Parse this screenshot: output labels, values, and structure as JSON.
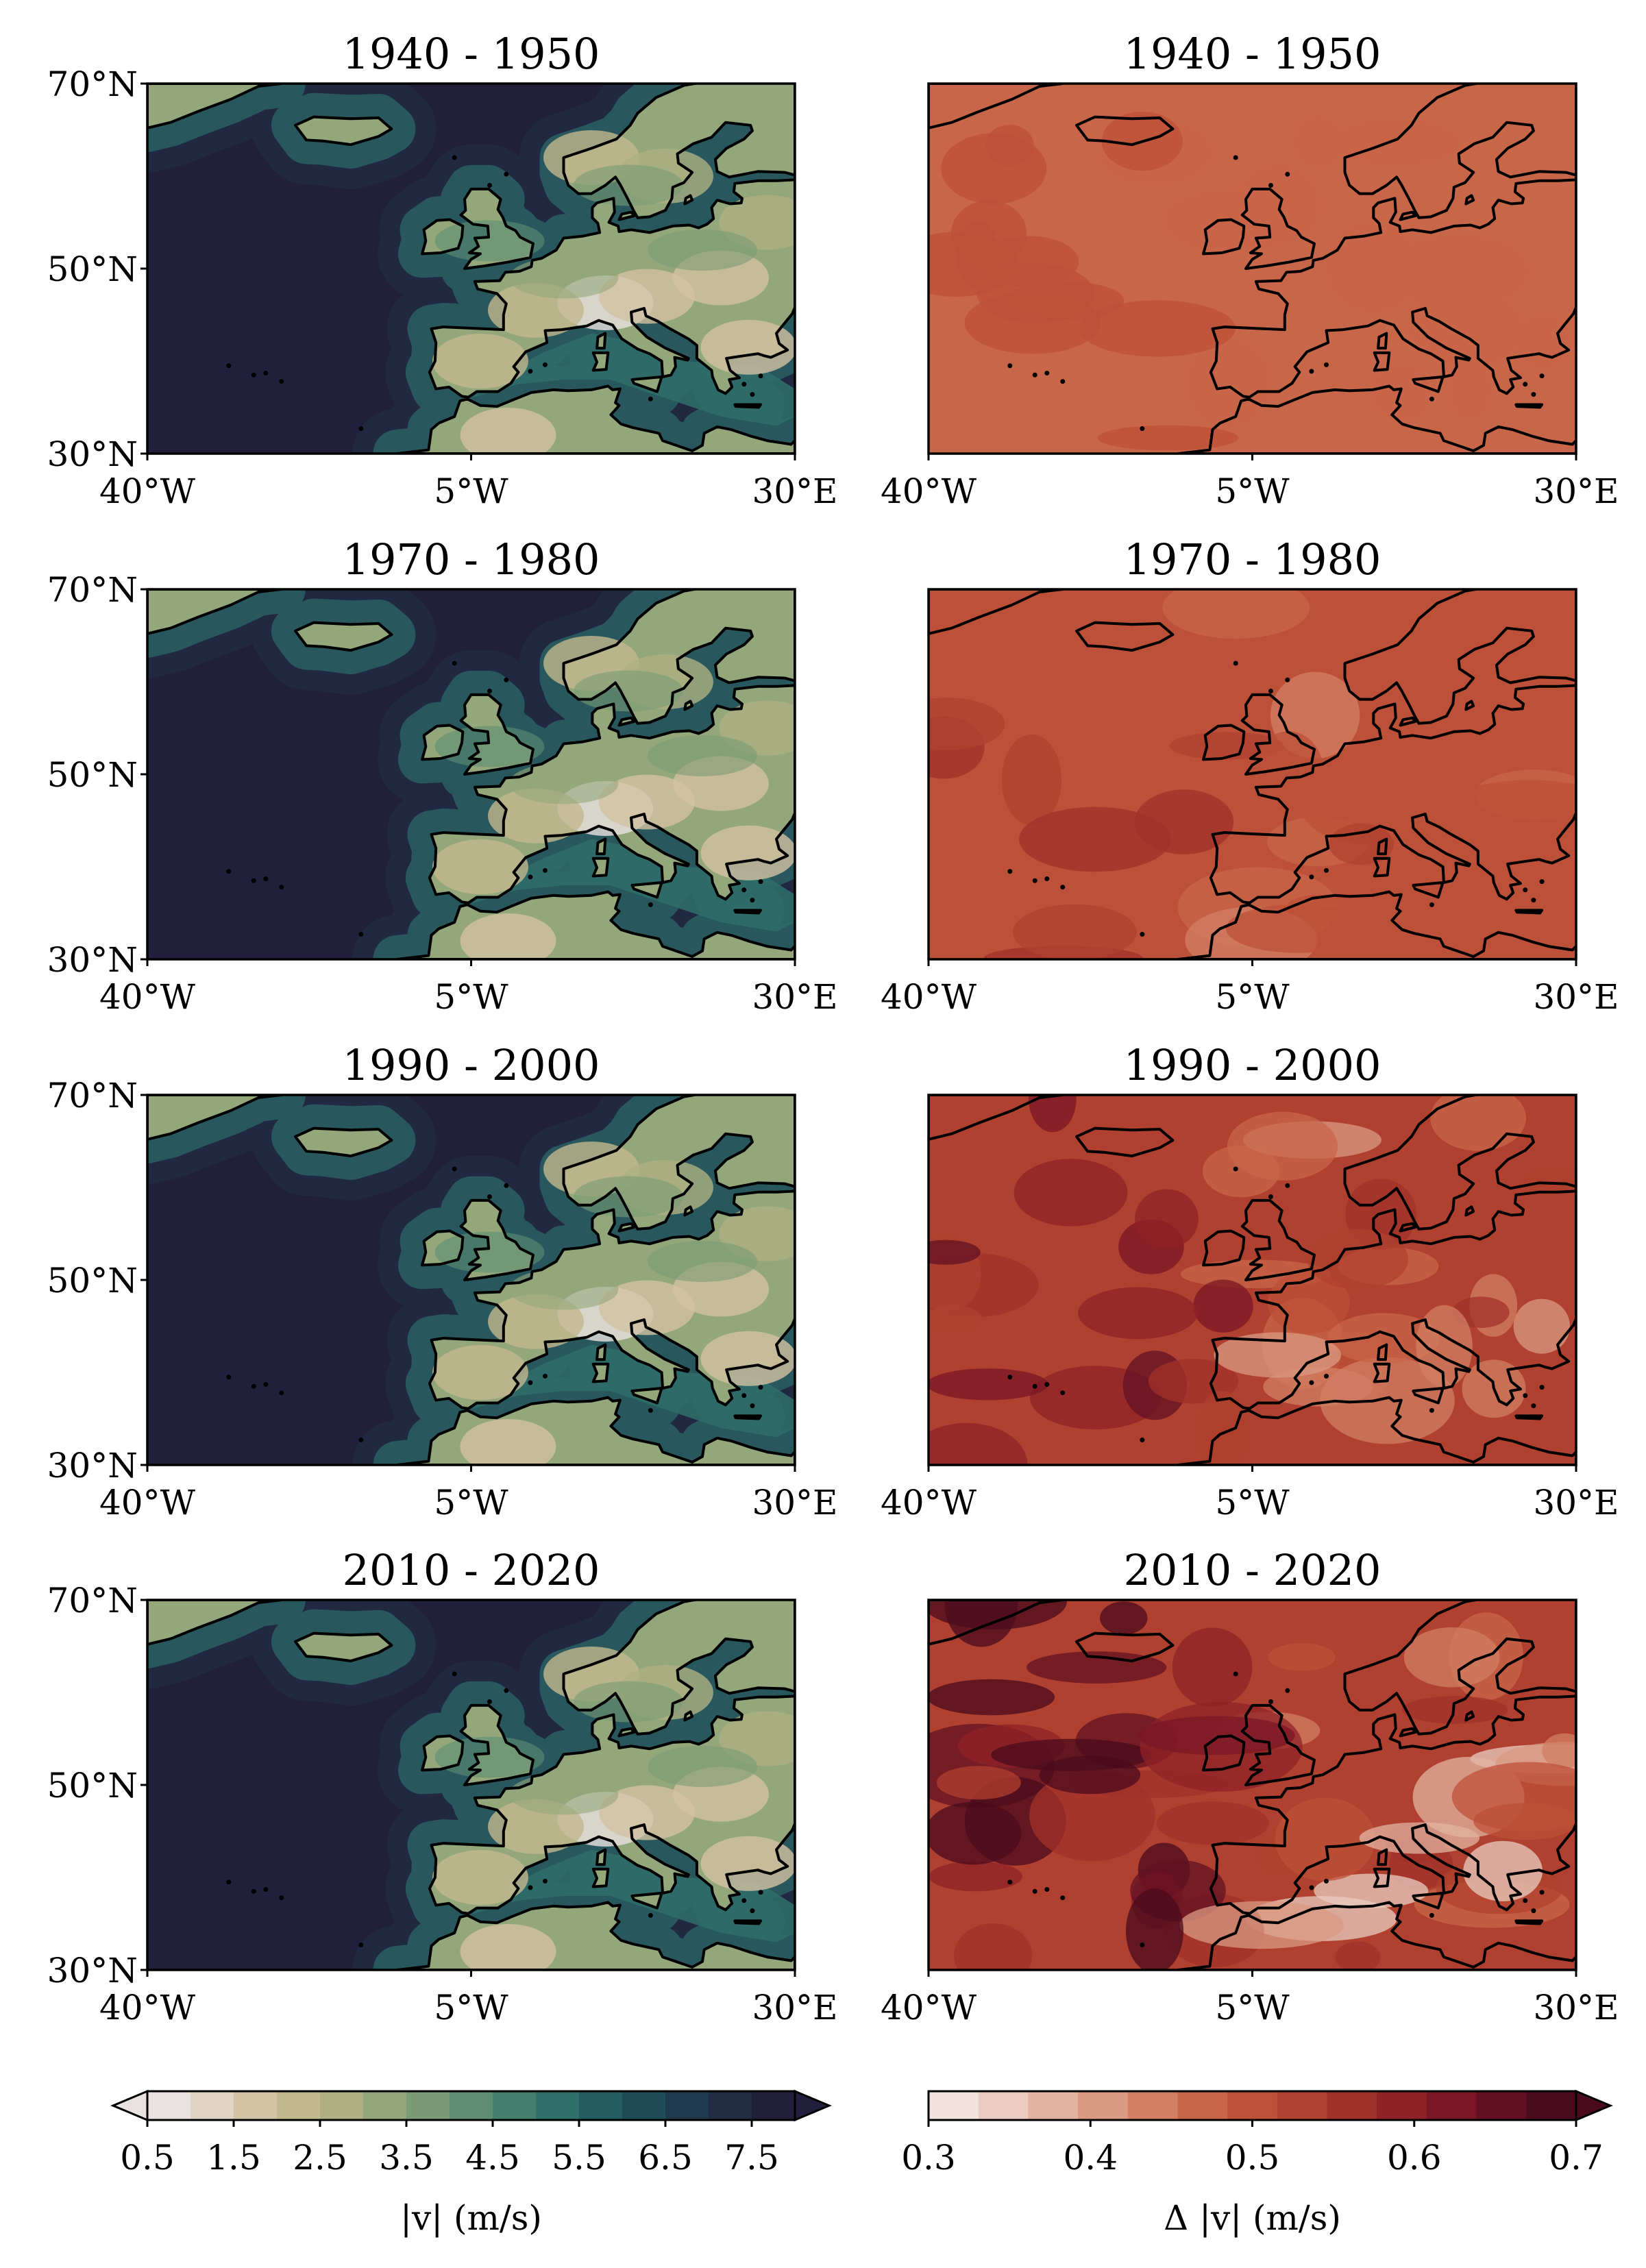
{
  "chart_data": {
    "type": "heatmap",
    "description_free": true,
    "panels": [
      {
        "column": "left",
        "row": 0,
        "title": "1940 - 1950",
        "variable": "speed",
        "mean_land": 3.0,
        "mean_sea": 7.8
      },
      {
        "column": "right",
        "row": 0,
        "title": "1940 - 1950",
        "variable": "delta",
        "mean": 0.48,
        "variation": 0.02
      },
      {
        "column": "left",
        "row": 1,
        "title": "1970 - 1980",
        "variable": "speed",
        "mean_land": 3.0,
        "mean_sea": 7.9
      },
      {
        "column": "right",
        "row": 1,
        "title": "1970 - 1980",
        "variable": "delta",
        "mean": 0.5,
        "variation": 0.04
      },
      {
        "column": "left",
        "row": 2,
        "title": "1990 - 2000",
        "variable": "speed",
        "mean_land": 3.0,
        "mean_sea": 7.9
      },
      {
        "column": "right",
        "row": 2,
        "title": "1990 - 2000",
        "variable": "delta",
        "mean": 0.52,
        "variation": 0.08
      },
      {
        "column": "left",
        "row": 3,
        "title": "2010 - 2020",
        "variable": "speed",
        "mean_land": 3.0,
        "mean_sea": 7.9
      },
      {
        "column": "right",
        "row": 3,
        "title": "2010 - 2020",
        "variable": "delta",
        "mean": 0.53,
        "variation": 0.14
      }
    ],
    "x_ticks": [
      {
        "value": -40,
        "label": "40°W"
      },
      {
        "value": -5,
        "label": "5°W"
      },
      {
        "value": 30,
        "label": "30°E"
      }
    ],
    "y_ticks": [
      {
        "value": 30,
        "label": "30°N"
      },
      {
        "value": 50,
        "label": "50°N"
      },
      {
        "value": 70,
        "label": "70°N"
      }
    ],
    "xlim": [
      -40,
      30
    ],
    "ylim": [
      30,
      70
    ],
    "colorbars": [
      {
        "label": "|v| (m/s)",
        "range": [
          0.5,
          8.0
        ],
        "extend": "both",
        "ticks": [
          0.5,
          1.5,
          2.5,
          3.5,
          4.5,
          5.5,
          6.5,
          7.5
        ],
        "tick_labels": [
          "0.5",
          "1.5",
          "2.5",
          "3.5",
          "4.5",
          "5.5",
          "6.5",
          "7.5"
        ],
        "colors": [
          "#e8e2e0",
          "#dfd3c1",
          "#d3c2a3",
          "#c2b88e",
          "#aeb083",
          "#94a77b",
          "#799b75",
          "#5e8d71",
          "#447e6d",
          "#2f6f6a",
          "#235c61",
          "#1f4a58",
          "#1f3a4e",
          "#212d44",
          "#221f3c"
        ]
      },
      {
        "label": "Δ |v| (m/s)",
        "range": [
          0.3,
          0.7
        ],
        "extend": "max",
        "ticks": [
          0.3,
          0.4,
          0.5,
          0.6,
          0.7
        ],
        "tick_labels": [
          "0.3",
          "0.4",
          "0.5",
          "0.6",
          "0.7"
        ],
        "colors": [
          "#f1e3de",
          "#eaccc0",
          "#e2b3a1",
          "#da9982",
          "#d27f64",
          "#c8664a",
          "#bd5038",
          "#b0402f",
          "#a1302a",
          "#8f2227",
          "#7a1726",
          "#631023",
          "#4a0b1e"
        ]
      }
    ],
    "grid": false,
    "legend": "none"
  }
}
